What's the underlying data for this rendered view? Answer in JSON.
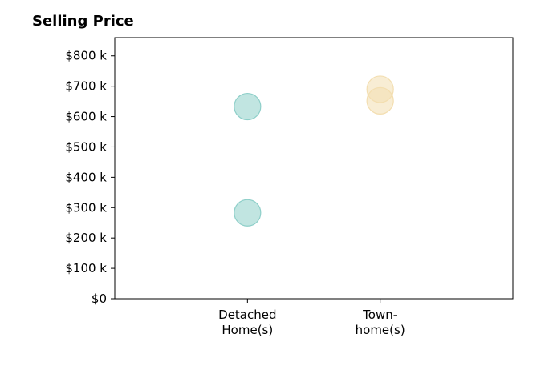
{
  "chart_data": {
    "type": "scatter",
    "title": "Selling Price",
    "xlabel": "",
    "ylabel": "",
    "categories": [
      [
        "Detached",
        "Home(s)"
      ],
      [
        "Town-",
        "home(s)"
      ]
    ],
    "y_ticks": [
      0,
      100,
      200,
      300,
      400,
      500,
      600,
      700,
      800
    ],
    "y_tick_labels": [
      "$0",
      "$100 k",
      "$200 k",
      "$300 k",
      "$400 k",
      "$500 k",
      "$600 k",
      "$700 k",
      "$800 k"
    ],
    "ylim": [
      0,
      860
    ],
    "xlim": [
      -1,
      2
    ],
    "grid": false,
    "series": [
      {
        "category_index": 0,
        "color": "#8ecfc9",
        "values": [
          633,
          283
        ]
      },
      {
        "category_index": 1,
        "color": "#f3deb0",
        "values": [
          690,
          652
        ]
      }
    ]
  }
}
